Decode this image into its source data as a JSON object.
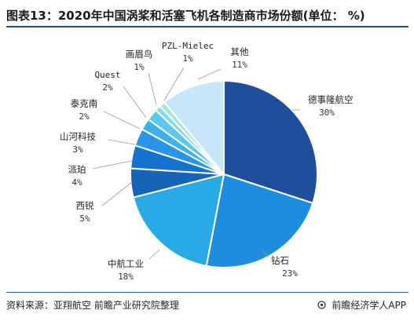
{
  "header": {
    "title": "图表13：2020年中国涡桨和活塞飞机各制造商市场份额(单位： %)"
  },
  "footer": {
    "source": "资料来源：亚翔航空 前瞻产业研究院整理",
    "brand": "前瞻经济学人APP",
    "brand_icon": "circle-logo-icon"
  },
  "chart_data": {
    "type": "pie",
    "title": "图表13：2020年中国涡桨和活塞飞机各制造商市场份额(单位： %)",
    "unit": "%",
    "slices": [
      {
        "label": "德事隆航空",
        "value": 30,
        "value_label": "30%",
        "color": "#1f4e9c"
      },
      {
        "label": "钻石",
        "value": 23,
        "value_label": "23%",
        "color": "#1e8de0"
      },
      {
        "label": "中航工业",
        "value": 18,
        "value_label": "18%",
        "color": "#29aae6"
      },
      {
        "label": "西锐",
        "value": 5,
        "value_label": "5%",
        "color": "#1564b8"
      },
      {
        "label": "派珀",
        "value": 4,
        "value_label": "4%",
        "color": "#1572cf"
      },
      {
        "label": "山河科技",
        "value": 3,
        "value_label": "3%",
        "color": "#2a94e8"
      },
      {
        "label": "泰克南",
        "value": 2,
        "value_label": "2%",
        "color": "#3fb0ec"
      },
      {
        "label": "Quest",
        "value": 2,
        "value_label": "2%",
        "color": "#5ec7ee"
      },
      {
        "label": "画眉鸟",
        "value": 1,
        "value_label": "1%",
        "color": "#86d8ee"
      },
      {
        "label": "PZL-Mielec",
        "value": 1,
        "value_label": "1%",
        "color": "#a8e6d8"
      },
      {
        "label": "其他",
        "value": 11,
        "value_label": "11%",
        "color": "#c8e6fa"
      }
    ]
  }
}
